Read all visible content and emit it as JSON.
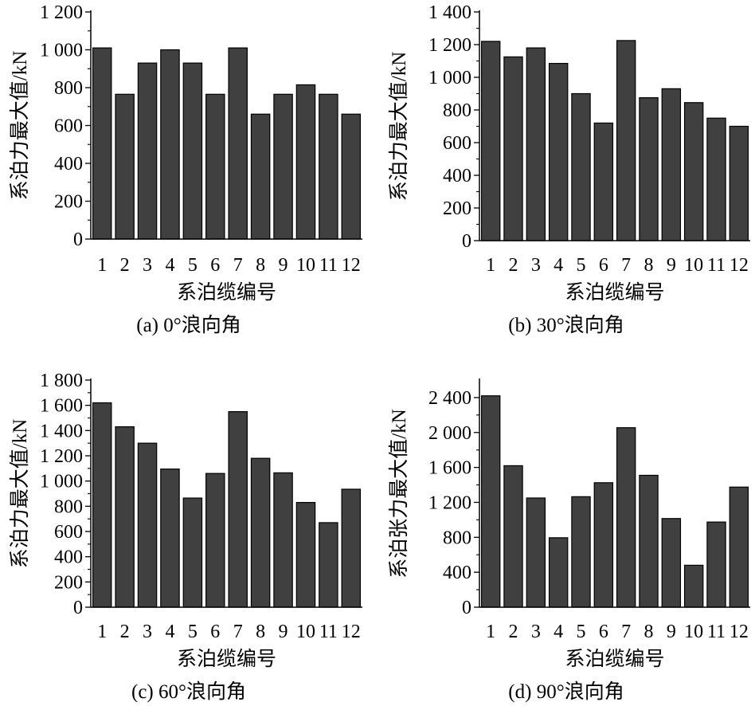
{
  "chart_data": [
    {
      "type": "bar",
      "caption": "(a) 0°浪向角",
      "xlabel": "系泊缆编号",
      "ylabel": "系泊力最大值/kN",
      "categories": [
        "1",
        "2",
        "3",
        "4",
        "5",
        "6",
        "7",
        "8",
        "9",
        "10",
        "11",
        "12"
      ],
      "values": [
        1010,
        765,
        930,
        1000,
        930,
        765,
        1010,
        660,
        765,
        815,
        765,
        660
      ],
      "ylim": [
        0,
        1200
      ],
      "yticks": [
        0,
        200,
        400,
        600,
        800,
        1000,
        1200
      ],
      "ytick_labels": [
        "0",
        "200",
        "400",
        "600",
        "800",
        "1 000",
        "1 200"
      ],
      "bar_color": "#404040",
      "grid": false
    },
    {
      "type": "bar",
      "caption": "(b) 30°浪向角",
      "xlabel": "系泊缆编号",
      "ylabel": "系泊力最大值/kN",
      "categories": [
        "1",
        "2",
        "3",
        "4",
        "5",
        "6",
        "7",
        "8",
        "9",
        "10",
        "11",
        "12"
      ],
      "values": [
        1220,
        1125,
        1180,
        1085,
        900,
        720,
        1225,
        875,
        930,
        845,
        750,
        700
      ],
      "ylim": [
        0,
        1400
      ],
      "yticks": [
        0,
        200,
        400,
        600,
        800,
        1000,
        1200,
        1400
      ],
      "ytick_labels": [
        "0",
        "200",
        "400",
        "600",
        "800",
        "1 000",
        "1 200",
        "1 400"
      ],
      "bar_color": "#404040",
      "grid": false
    },
    {
      "type": "bar",
      "caption": "(c) 60°浪向角",
      "xlabel": "系泊缆编号",
      "ylabel": "系泊力最大值/kN",
      "categories": [
        "1",
        "2",
        "3",
        "4",
        "5",
        "6",
        "7",
        "8",
        "9",
        "10",
        "11",
        "12"
      ],
      "values": [
        1620,
        1430,
        1300,
        1095,
        865,
        1060,
        1550,
        1180,
        1065,
        830,
        670,
        935
      ],
      "ylim": [
        0,
        1800
      ],
      "yticks": [
        0,
        200,
        400,
        600,
        800,
        1000,
        1200,
        1400,
        1600,
        1800
      ],
      "ytick_labels": [
        "0",
        "200",
        "400",
        "600",
        "800",
        "1 000",
        "1 200",
        "1 400",
        "1 600",
        "1 800"
      ],
      "bar_color": "#404040",
      "grid": false
    },
    {
      "type": "bar",
      "caption": "(d) 90°浪向角",
      "xlabel": "系泊缆编号",
      "ylabel": "系泊张力最大值/kN",
      "categories": [
        "1",
        "2",
        "3",
        "4",
        "5",
        "6",
        "7",
        "8",
        "9",
        "10",
        "11",
        "12"
      ],
      "values": [
        2420,
        1620,
        1250,
        795,
        1265,
        1425,
        2055,
        1510,
        1015,
        480,
        975,
        1375
      ],
      "ylim": [
        0,
        2600
      ],
      "yticks": [
        0,
        400,
        800,
        1200,
        1600,
        2000,
        2400
      ],
      "ytick_labels": [
        "0",
        "400",
        "800",
        "1 200",
        "1 600",
        "2 000",
        "2 400"
      ],
      "bar_color": "#404040",
      "grid": false
    }
  ]
}
